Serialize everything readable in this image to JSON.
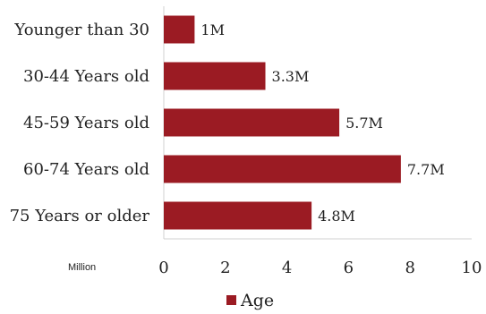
{
  "chart_data": {
    "type": "bar",
    "orientation": "horizontal",
    "categories": [
      "Younger than 30",
      "30-44 Years old",
      "45-59 Years old",
      "60-74 Years old",
      "75 Years or older"
    ],
    "series": [
      {
        "name": "Age",
        "values": [
          1,
          3.3,
          5.7,
          7.7,
          4.8
        ],
        "data_labels": [
          "1M",
          "3.3M",
          "5.7M",
          "7.7M",
          "4.8M"
        ],
        "color": "#9b1b23"
      }
    ],
    "xlabel": "Million",
    "xlim": [
      0,
      10
    ],
    "xticks": [
      0,
      2,
      4,
      6,
      8,
      10
    ],
    "grid": false,
    "legend_position": "bottom"
  }
}
